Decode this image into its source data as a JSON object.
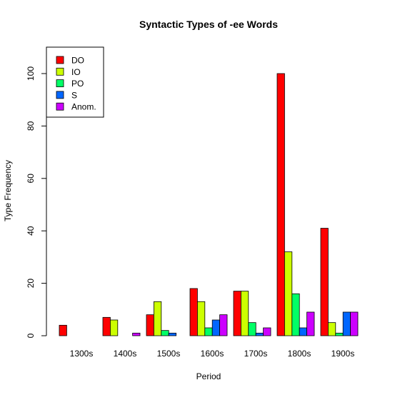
{
  "chart_data": {
    "type": "bar",
    "title": "Syntactic Types of -ee Words",
    "xlabel": "Period",
    "ylabel": "Type Frequency",
    "categories": [
      "1300s",
      "1400s",
      "1500s",
      "1600s",
      "1700s",
      "1800s",
      "1900s"
    ],
    "ylim": [
      0,
      110
    ],
    "yticks": [
      0,
      20,
      40,
      60,
      80,
      100
    ],
    "grid": false,
    "legend_position": "top-left",
    "series": [
      {
        "name": "DO",
        "color": "#ff0000",
        "values": [
          4,
          7,
          8,
          18,
          17,
          100,
          41
        ]
      },
      {
        "name": "IO",
        "color": "#ccff00",
        "values": [
          0,
          6,
          13,
          13,
          17,
          32,
          5
        ]
      },
      {
        "name": "PO",
        "color": "#00ff66",
        "values": [
          0,
          0,
          2,
          3,
          5,
          16,
          1
        ]
      },
      {
        "name": "S",
        "color": "#0066ff",
        "values": [
          0,
          0,
          1,
          6,
          1,
          3,
          9
        ]
      },
      {
        "name": "Anom.",
        "color": "#cc00ff",
        "values": [
          0,
          1,
          0,
          8,
          3,
          9,
          9
        ]
      }
    ]
  }
}
